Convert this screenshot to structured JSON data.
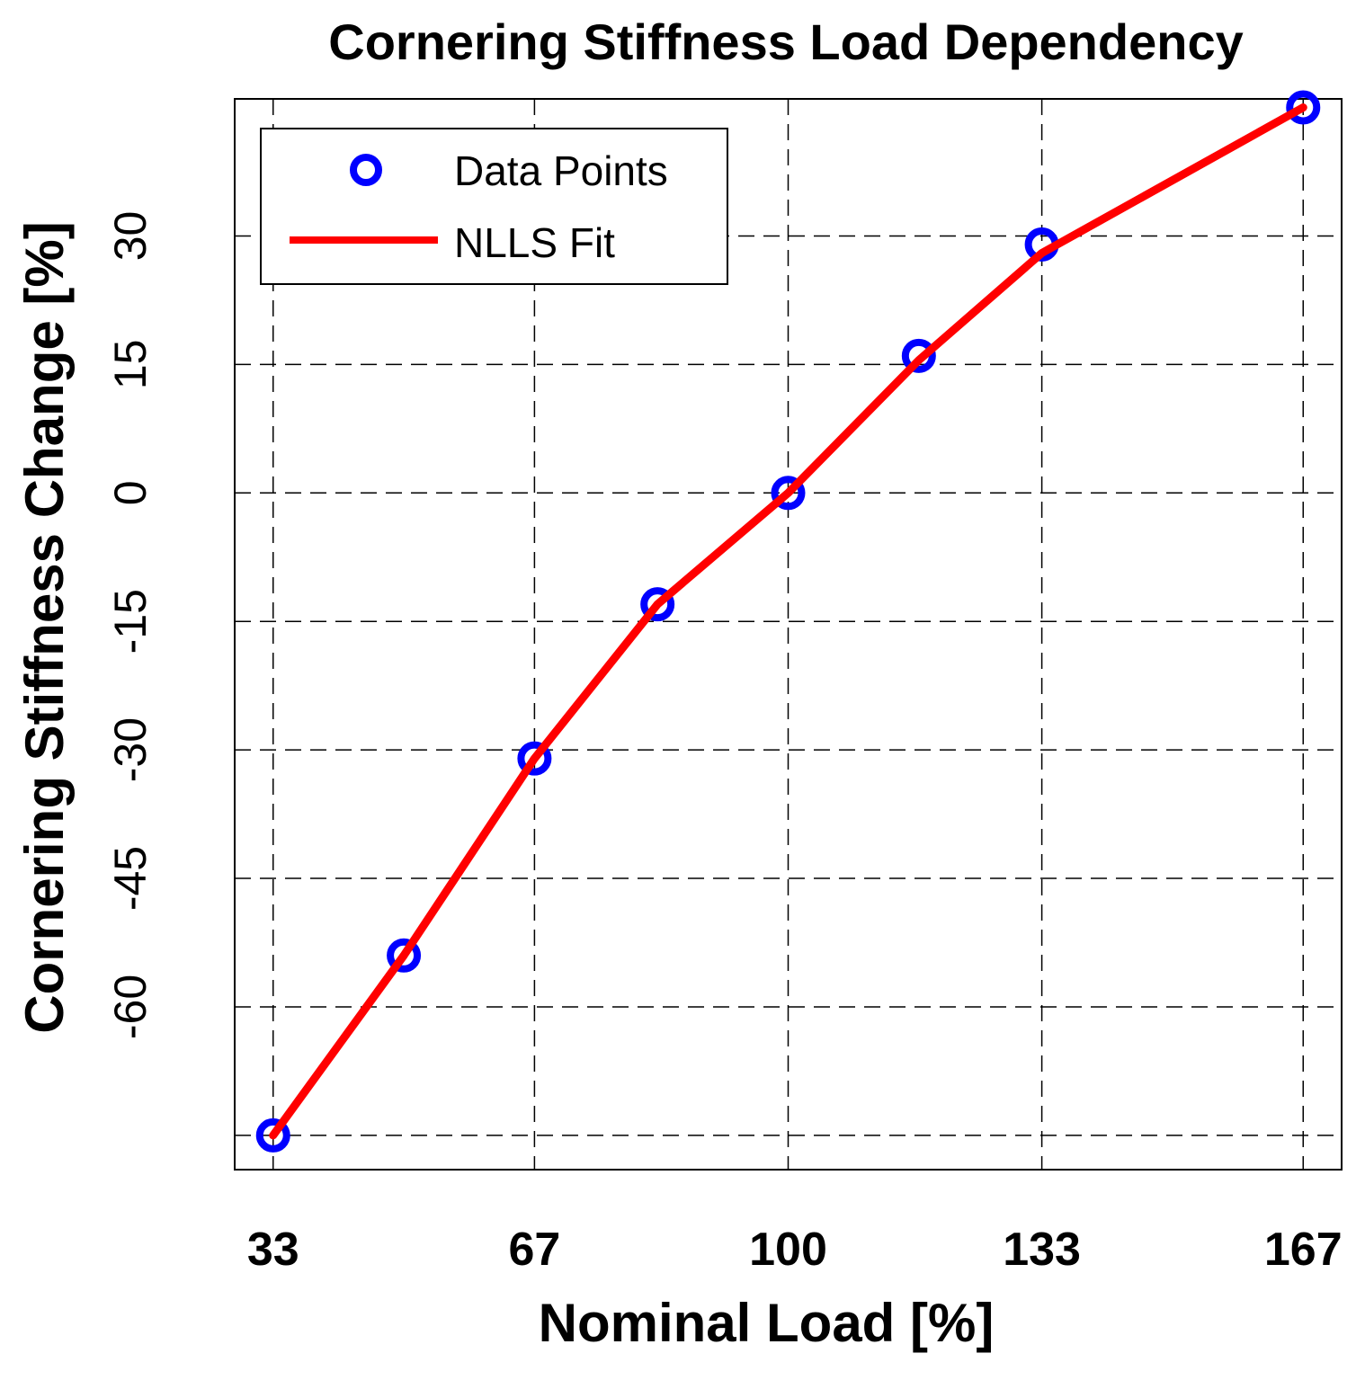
{
  "chart_data": {
    "type": "line",
    "title": "Cornering Stiffness Load Dependency",
    "xlabel": "Nominal Load [%]",
    "ylabel": "Cornering Stiffness Change  [%]",
    "xlim": [
      28,
      172
    ],
    "ylim": [
      -79,
      46
    ],
    "xticks": [
      33,
      67,
      100,
      133,
      167
    ],
    "xtick_labels": [
      "33",
      "67",
      "100",
      "133",
      "167"
    ],
    "yticks": [
      -75,
      -60,
      -45,
      -30,
      -15,
      0,
      15,
      30
    ],
    "ytick_labels": [
      "",
      "-60",
      "-45",
      "-30",
      "-15",
      "0",
      "15",
      "30"
    ],
    "grid": true,
    "legend_position": "top-left",
    "series": [
      {
        "name": "Data Points",
        "style": "markers",
        "marker": "circle",
        "color": "#0000ff",
        "x": [
          33,
          50,
          67,
          83,
          100,
          117,
          133,
          167
        ],
        "y": [
          -75,
          -54,
          -31,
          -13,
          0,
          16,
          29,
          45
        ]
      },
      {
        "name": "NLLS Fit",
        "style": "line",
        "color": "#ff0000",
        "x": [
          33,
          50,
          67,
          83,
          100,
          117,
          133,
          167
        ],
        "y": [
          -75,
          -54,
          -31,
          -13,
          0,
          15.5,
          28,
          45
        ]
      }
    ]
  }
}
